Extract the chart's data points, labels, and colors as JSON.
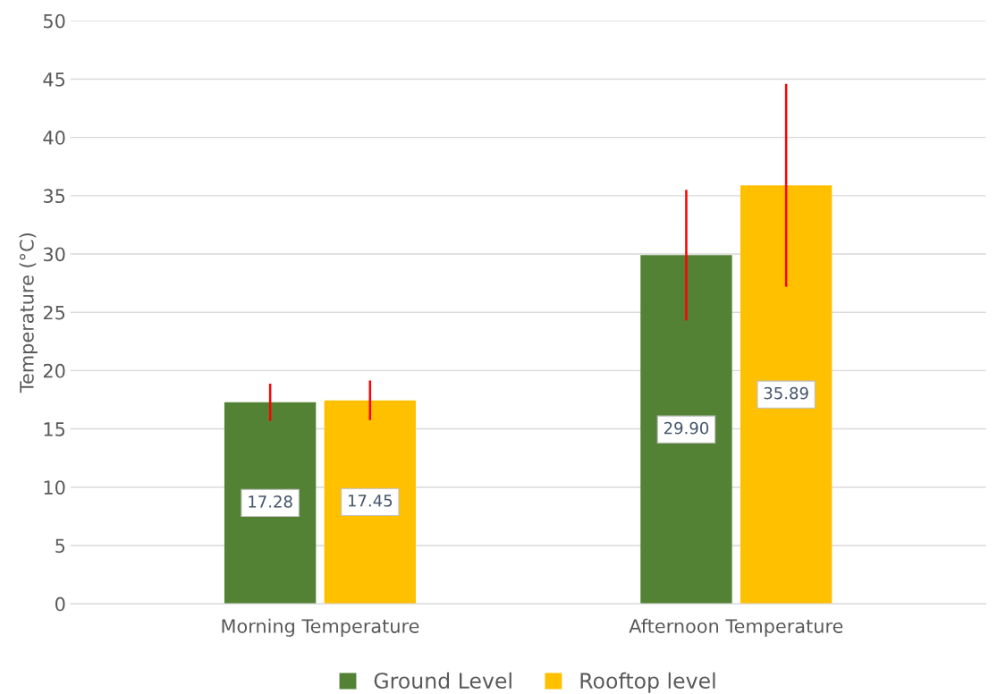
{
  "chart_data": {
    "type": "bar",
    "ylabel": "Temperature (°C)",
    "categories": [
      "Morning Temperature",
      "Afternoon Temperature"
    ],
    "series": [
      {
        "name": "Ground Level",
        "color": "#548235",
        "values": [
          17.28,
          29.9
        ],
        "value_labels": [
          "17.28",
          "29.90"
        ],
        "errors": [
          1.6,
          5.6
        ]
      },
      {
        "name": "Rooftop level",
        "color": "#ffc000",
        "values": [
          17.45,
          35.89
        ],
        "value_labels": [
          "17.45",
          "35.89"
        ],
        "errors": [
          1.7,
          8.7
        ]
      }
    ],
    "ylim": [
      0,
      50
    ],
    "yticks": [
      0,
      5,
      10,
      15,
      20,
      25,
      30,
      35,
      40,
      45,
      50
    ],
    "grid": "y",
    "legend": "bottom"
  }
}
